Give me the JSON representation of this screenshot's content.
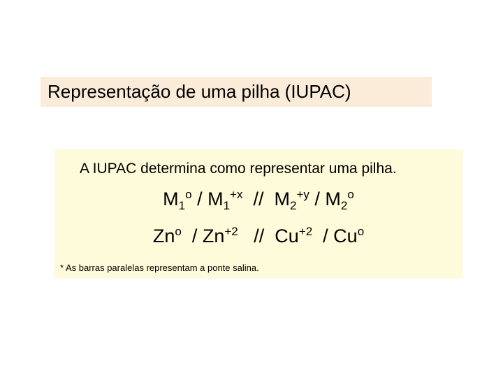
{
  "title": {
    "text": "Representação de uma pilha (IUPAC)",
    "background_color": "#faecd9",
    "text_color": "#000000",
    "fontsize": 26
  },
  "content": {
    "background_color": "#fdfbd9",
    "intro": "A IUPAC determina como representar uma pilha.",
    "intro_fontsize": 21,
    "formula1": {
      "parts": [
        {
          "base": "M",
          "sub": "1",
          "sup": "o"
        },
        {
          "sep": " / "
        },
        {
          "base": "M",
          "sub": "1",
          "sup": "+x"
        },
        {
          "sep": "  //  "
        },
        {
          "base": "M",
          "sub": "2",
          "sup": "+y"
        },
        {
          "sep": " / "
        },
        {
          "base": "M",
          "sub": "2",
          "sup": "o"
        }
      ],
      "fontsize": 27
    },
    "formula2": {
      "parts": [
        {
          "base": "Zn",
          "sup": "o"
        },
        {
          "sep": "  / "
        },
        {
          "base": "Zn",
          "sup": "+2"
        },
        {
          "sep": "   //  "
        },
        {
          "base": "Cu",
          "sup": "+2"
        },
        {
          "sep": "  / "
        },
        {
          "base": "Cu",
          "sup": "o"
        }
      ],
      "fontsize": 27
    },
    "footnote": "* As barras paralelas representam a ponte salina.",
    "footnote_fontsize": 13
  }
}
